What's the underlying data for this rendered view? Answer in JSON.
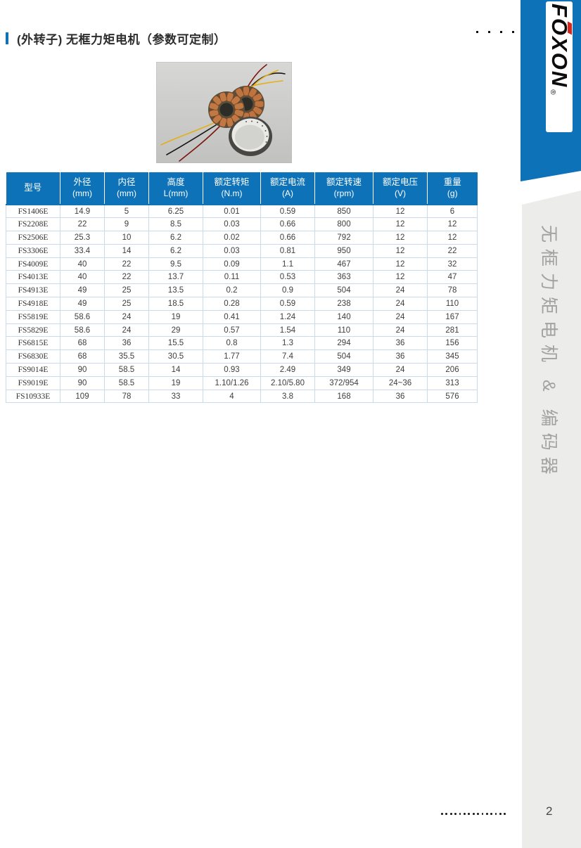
{
  "page": {
    "title": "(外转子) 无框力矩电机（参数可定制）",
    "page_number": "2"
  },
  "logo": {
    "brand": "FOXON",
    "registered_mark": "®"
  },
  "sidebar": {
    "vertical_label": "无框力矩电机 & 编码器"
  },
  "decorations": {
    "top_dots_count": 4,
    "bottom_dots_count": 15
  },
  "table": {
    "columns": [
      {
        "label": "型号",
        "unit": ""
      },
      {
        "label": "外径",
        "unit": "(mm)"
      },
      {
        "label": "内径",
        "unit": "(mm)"
      },
      {
        "label": "高度",
        "unit": "L(mm)"
      },
      {
        "label": "额定转矩",
        "unit": "(N.m)"
      },
      {
        "label": "额定电流",
        "unit": "(A)"
      },
      {
        "label": "额定转速",
        "unit": "(rpm)"
      },
      {
        "label": "额定电压",
        "unit": "(V)"
      },
      {
        "label": "重量",
        "unit": "(g)"
      }
    ],
    "rows": [
      [
        "FS1406E",
        "14.9",
        "5",
        "6.25",
        "0.01",
        "0.59",
        "850",
        "12",
        "6"
      ],
      [
        "FS2208E",
        "22",
        "9",
        "8.5",
        "0.03",
        "0.66",
        "800",
        "12",
        "12"
      ],
      [
        "FS2506E",
        "25.3",
        "10",
        "6.2",
        "0.02",
        "0.66",
        "792",
        "12",
        "12"
      ],
      [
        "FS3306E",
        "33.4",
        "14",
        "6.2",
        "0.03",
        "0.81",
        "950",
        "12",
        "22"
      ],
      [
        "FS4009E",
        "40",
        "22",
        "9.5",
        "0.09",
        "1.1",
        "467",
        "12",
        "32"
      ],
      [
        "FS4013E",
        "40",
        "22",
        "13.7",
        "0.11",
        "0.53",
        "363",
        "12",
        "47"
      ],
      [
        "FS4913E",
        "49",
        "25",
        "13.5",
        "0.2",
        "0.9",
        "504",
        "24",
        "78"
      ],
      [
        "FS4918E",
        "49",
        "25",
        "18.5",
        "0.28",
        "0.59",
        "238",
        "24",
        "110"
      ],
      [
        "FS5819E",
        "58.6",
        "24",
        "19",
        "0.41",
        "1.24",
        "140",
        "24",
        "167"
      ],
      [
        "FS5829E",
        "58.6",
        "24",
        "29",
        "0.57",
        "1.54",
        "110",
        "24",
        "281"
      ],
      [
        "FS6815E",
        "68",
        "36",
        "15.5",
        "0.8",
        "1.3",
        "294",
        "36",
        "156"
      ],
      [
        "FS6830E",
        "68",
        "35.5",
        "30.5",
        "1.77",
        "7.4",
        "504",
        "36",
        "345"
      ],
      [
        "FS9014E",
        "90",
        "58.5",
        "14",
        "0.93",
        "2.49",
        "349",
        "24",
        "206"
      ],
      [
        "FS9019E",
        "90",
        "58.5",
        "19",
        "1.10/1.26",
        "2.10/5.80",
        "372/954",
        "24~36",
        "313"
      ],
      [
        "FS10933E",
        "109",
        "78",
        "33",
        "4",
        "3.8",
        "168",
        "36",
        "576"
      ]
    ]
  },
  "colors": {
    "accent_blue": "#0d72b8",
    "logo_red": "#d8251c",
    "table_border": "#c9dbea",
    "sidebar_bg": "#ececea",
    "sidebar_text": "#a2a2a0",
    "body_text": "#3e3e3e"
  }
}
